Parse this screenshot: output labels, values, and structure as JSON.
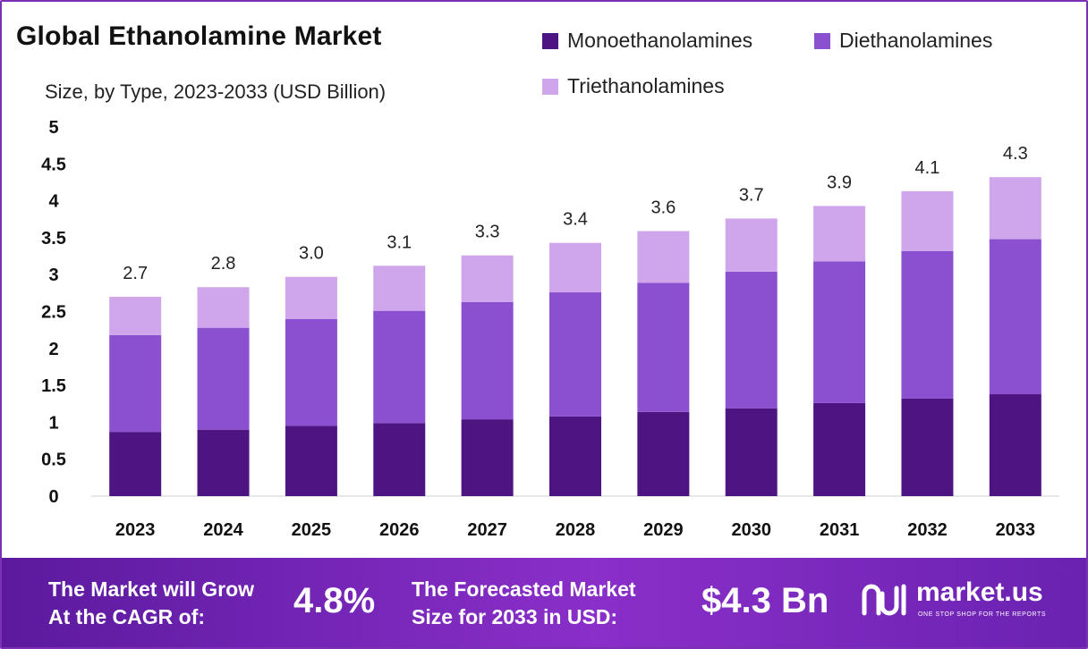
{
  "chart_data": {
    "type": "bar",
    "stacked": true,
    "title": "Global Ethanolamine Market",
    "subtitle": "Size, by Type, 2023-2033 (USD Billion)",
    "categories": [
      "2023",
      "2024",
      "2025",
      "2026",
      "2027",
      "2028",
      "2029",
      "2030",
      "2031",
      "2032",
      "2033"
    ],
    "series": [
      {
        "name": "Monoethanolamines",
        "color": "#4e1582",
        "values": [
          0.87,
          0.9,
          0.95,
          0.99,
          1.04,
          1.08,
          1.14,
          1.19,
          1.26,
          1.32,
          1.38
        ]
      },
      {
        "name": "Diethanolamines",
        "color": "#8b50cf",
        "values": [
          1.31,
          1.38,
          1.45,
          1.52,
          1.59,
          1.68,
          1.75,
          1.85,
          1.92,
          2.0,
          2.1
        ]
      },
      {
        "name": "Triethanolamines",
        "color": "#cfa6ec",
        "values": [
          0.52,
          0.55,
          0.57,
          0.61,
          0.63,
          0.67,
          0.7,
          0.72,
          0.75,
          0.81,
          0.84
        ]
      }
    ],
    "totals": [
      "2.7",
      "2.8",
      "3.0",
      "3.1",
      "3.3",
      "3.4",
      "3.6",
      "3.7",
      "3.9",
      "4.1",
      "4.3"
    ],
    "y_ticks": [
      "0",
      "0.5",
      "1",
      "1.5",
      "2",
      "2.5",
      "3",
      "3.5",
      "4",
      "4.5",
      "5"
    ],
    "ylim": [
      0,
      5
    ],
    "grid": false,
    "legend_position": "top-right"
  },
  "footer": {
    "cagr_label_line1": "The Market will Grow",
    "cagr_label_line2": "At the CAGR of:",
    "cagr_value": "4.8%",
    "forecast_label_line1": "The Forecasted Market",
    "forecast_label_line2": "Size for 2033 in USD:",
    "forecast_value": "$4.3 Bn",
    "brand_name": "market.us",
    "brand_tagline": "ONE STOP SHOP FOR THE REPORTS"
  },
  "colors": {
    "accent": "#7b2fb5",
    "footer_start": "#5b1a9e",
    "footer_end": "#8a2fc9"
  }
}
